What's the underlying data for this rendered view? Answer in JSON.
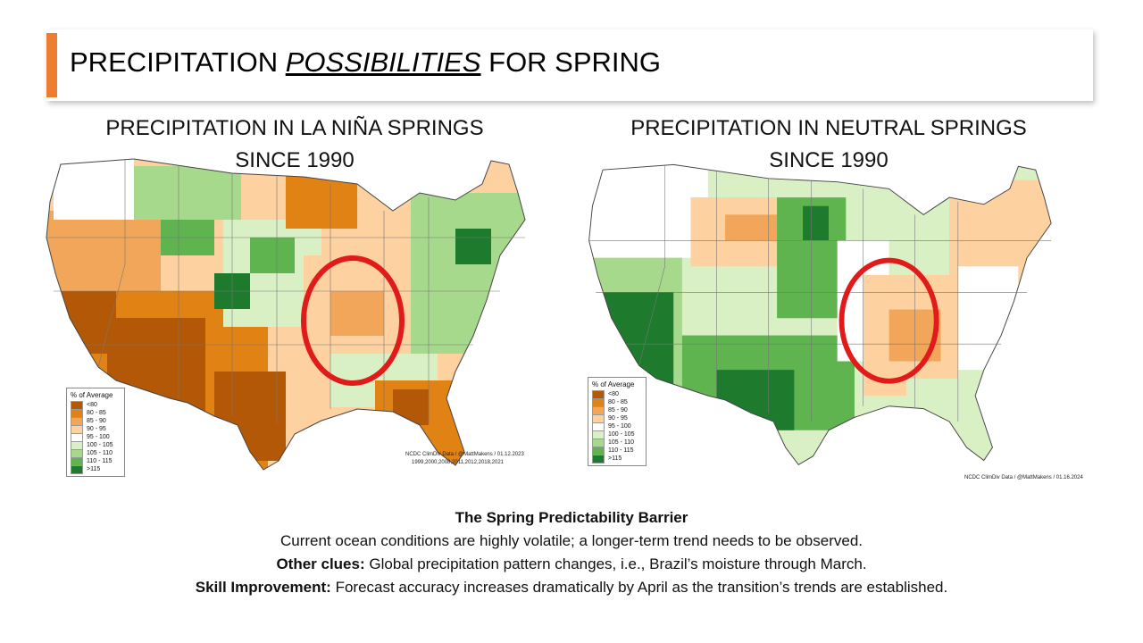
{
  "header": {
    "title_before": "PRECIPITATION ",
    "title_em": "POSSIBILITIES",
    "title_after": " FOR SPRING"
  },
  "colors": {
    "accent": "#ed7d31",
    "highlight_circle": "#e11a1a"
  },
  "legend_items": [
    {
      "label": "<80",
      "color": "#b35806"
    },
    {
      "label": "80 - 85",
      "color": "#e08214"
    },
    {
      "label": "85 - 90",
      "color": "#f2a65a"
    },
    {
      "label": "90 - 95",
      "color": "#fdd1a0"
    },
    {
      "label": "95 - 100",
      "color": "#ffffff"
    },
    {
      "label": "100 - 105",
      "color": "#d9f0c5"
    },
    {
      "label": "105 - 110",
      "color": "#a6d98b"
    },
    {
      "label": "110 - 115",
      "color": "#5fb450"
    },
    {
      "label": ">115",
      "color": "#1e7a2d"
    }
  ],
  "maps": {
    "lanina": {
      "title_line1": "PRECIPITATION IN LA NIÑA SPRINGS",
      "title_line2": "SINCE 1990",
      "legend_title": "% of Average",
      "credit": "NCDC ClimDiv Data / @MattMakens / 01.12.2023",
      "years": "1999,2000,2008,2011,2012,2018,2021"
    },
    "neutral": {
      "title_line1": "PRECIPITATION IN NEUTRAL SPRINGS",
      "title_line2": "SINCE 1990",
      "legend_title": "% of Average",
      "credit": "NCDC ClimDiv Data / @MattMakens / 01.16.2024"
    }
  },
  "notes": {
    "heading": "The Spring Predictability Barrier",
    "line1": "Current ocean conditions are highly volatile; a longer-term trend needs to be observed.",
    "line2_label": "Other clues:",
    "line2_text": " Global precipitation pattern changes, i.e., Brazil’s moisture through March.",
    "line3_label": "Skill Improvement:",
    "line3_text": " Forecast accuracy increases dramatically by April as the transition’s trends are established."
  }
}
